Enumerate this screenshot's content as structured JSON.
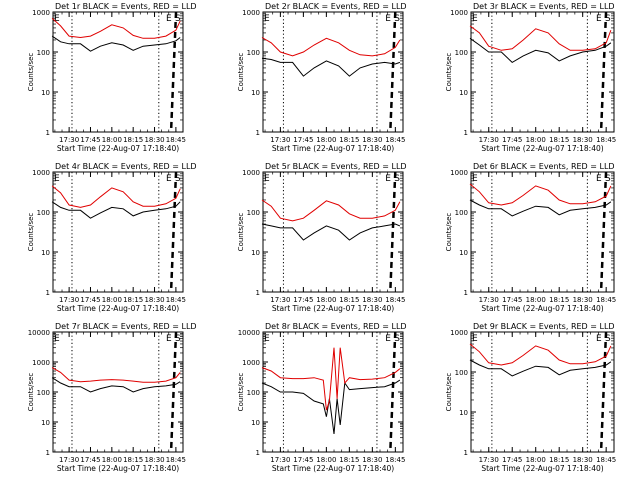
{
  "figure": {
    "xlabel": "Start Time (22-Aug-07 17:18:40)",
    "ylabel": "Counts/sec",
    "xticks": [
      "17:30",
      "17:45",
      "18:00",
      "18:15",
      "18:30",
      "18:45"
    ],
    "yticks": [
      "1",
      "10",
      "100",
      "1000"
    ],
    "yticks_wide": [
      "1",
      "10",
      "100",
      "1000",
      "10000"
    ],
    "marker_E": "E",
    "marker_S": "S",
    "colors": {
      "events": "#000000",
      "lld": "#e00000",
      "axes": "#000000"
    }
  },
  "chart_data": [
    {
      "type": "line",
      "title": "Det 1r BLACK = Events, RED = LLD",
      "ylim": [
        1,
        1000
      ],
      "log": true,
      "series": [
        {
          "name": "Events",
          "x": [
            "17:18",
            "17:24",
            "17:30",
            "17:38",
            "17:45",
            "17:52",
            "18:00",
            "18:08",
            "18:15",
            "18:22",
            "18:30",
            "18:38",
            "18:45",
            "18:48"
          ],
          "y": [
            250,
            180,
            160,
            160,
            105,
            140,
            170,
            150,
            110,
            140,
            150,
            160,
            190,
            230
          ]
        },
        {
          "name": "LLD",
          "x": [
            "17:18",
            "17:24",
            "17:30",
            "17:38",
            "17:45",
            "17:52",
            "18:00",
            "18:08",
            "18:15",
            "18:22",
            "18:30",
            "18:38",
            "18:45",
            "18:48"
          ],
          "y": [
            700,
            450,
            250,
            230,
            250,
            330,
            480,
            400,
            260,
            220,
            220,
            250,
            350,
            600
          ]
        }
      ]
    },
    {
      "type": "line",
      "title": "Det 2r BLACK = Events, RED = LLD",
      "ylim": [
        1,
        1000
      ],
      "log": true,
      "series": [
        {
          "name": "Events",
          "x": [
            "17:18",
            "17:24",
            "17:30",
            "17:38",
            "17:45",
            "17:52",
            "18:00",
            "18:08",
            "18:15",
            "18:22",
            "18:30",
            "18:38",
            "18:45",
            "18:48"
          ],
          "y": [
            70,
            65,
            55,
            55,
            25,
            40,
            60,
            45,
            25,
            40,
            50,
            55,
            50,
            55
          ]
        },
        {
          "name": "LLD",
          "x": [
            "17:18",
            "17:24",
            "17:30",
            "17:38",
            "17:45",
            "17:52",
            "18:00",
            "18:08",
            "18:15",
            "18:22",
            "18:30",
            "18:38",
            "18:45",
            "18:48"
          ],
          "y": [
            230,
            170,
            100,
            80,
            100,
            150,
            220,
            170,
            110,
            85,
            80,
            90,
            130,
            200
          ]
        }
      ]
    },
    {
      "type": "line",
      "title": "Det 3r BLACK = Events, RED = LLD",
      "ylim": [
        1,
        1000
      ],
      "log": true,
      "series": [
        {
          "name": "Events",
          "x": [
            "17:18",
            "17:24",
            "17:30",
            "17:38",
            "17:45",
            "17:52",
            "18:00",
            "18:08",
            "18:15",
            "18:22",
            "18:30",
            "18:38",
            "18:45",
            "18:48"
          ],
          "y": [
            220,
            150,
            100,
            100,
            55,
            80,
            110,
            95,
            60,
            80,
            100,
            110,
            140,
            170
          ]
        },
        {
          "name": "LLD",
          "x": [
            "17:18",
            "17:24",
            "17:30",
            "17:38",
            "17:45",
            "17:52",
            "18:00",
            "18:08",
            "18:15",
            "18:22",
            "18:30",
            "18:38",
            "18:45",
            "18:48"
          ],
          "y": [
            450,
            300,
            140,
            110,
            120,
            200,
            380,
            300,
            160,
            110,
            110,
            120,
            170,
            350
          ]
        }
      ]
    },
    {
      "type": "line",
      "title": "Det 4r BLACK = Events, RED = LLD",
      "ylim": [
        1,
        1000
      ],
      "log": true,
      "series": [
        {
          "name": "Events",
          "x": [
            "17:18",
            "17:24",
            "17:30",
            "17:38",
            "17:45",
            "17:52",
            "18:00",
            "18:08",
            "18:15",
            "18:22",
            "18:30",
            "18:38",
            "18:45",
            "18:48"
          ],
          "y": [
            180,
            130,
            110,
            110,
            70,
            95,
            130,
            120,
            80,
            100,
            110,
            120,
            140,
            180
          ]
        },
        {
          "name": "LLD",
          "x": [
            "17:18",
            "17:24",
            "17:30",
            "17:38",
            "17:45",
            "17:52",
            "18:00",
            "18:08",
            "18:15",
            "18:22",
            "18:30",
            "18:38",
            "18:45",
            "18:48"
          ],
          "y": [
            450,
            300,
            150,
            130,
            150,
            240,
            400,
            320,
            180,
            140,
            140,
            160,
            220,
            380
          ]
        }
      ]
    },
    {
      "type": "line",
      "title": "Det 5r BLACK = Events, RED = LLD",
      "ylim": [
        1,
        1000
      ],
      "log": true,
      "series": [
        {
          "name": "Events",
          "x": [
            "17:18",
            "17:24",
            "17:30",
            "17:38",
            "17:45",
            "17:52",
            "18:00",
            "18:08",
            "18:15",
            "18:22",
            "18:30",
            "18:38",
            "18:45",
            "18:48"
          ],
          "y": [
            50,
            45,
            40,
            40,
            20,
            30,
            45,
            35,
            20,
            30,
            40,
            45,
            50,
            45
          ]
        },
        {
          "name": "LLD",
          "x": [
            "17:18",
            "17:24",
            "17:30",
            "17:38",
            "17:45",
            "17:52",
            "18:00",
            "18:08",
            "18:15",
            "18:22",
            "18:30",
            "18:38",
            "18:45",
            "18:48"
          ],
          "y": [
            200,
            140,
            70,
            60,
            70,
            110,
            190,
            150,
            90,
            70,
            70,
            80,
            110,
            180
          ]
        }
      ]
    },
    {
      "type": "line",
      "title": "Det 6r BLACK = Events, RED = LLD",
      "ylim": [
        1,
        1000
      ],
      "log": true,
      "series": [
        {
          "name": "Events",
          "x": [
            "17:18",
            "17:24",
            "17:30",
            "17:38",
            "17:45",
            "17:52",
            "18:00",
            "18:08",
            "18:15",
            "18:22",
            "18:30",
            "18:38",
            "18:45",
            "18:48"
          ],
          "y": [
            200,
            150,
            120,
            120,
            80,
            105,
            140,
            130,
            85,
            110,
            120,
            130,
            150,
            180
          ]
        },
        {
          "name": "LLD",
          "x": [
            "17:18",
            "17:24",
            "17:30",
            "17:38",
            "17:45",
            "17:52",
            "18:00",
            "18:08",
            "18:15",
            "18:22",
            "18:30",
            "18:38",
            "18:45",
            "18:48"
          ],
          "y": [
            500,
            320,
            170,
            150,
            170,
            260,
            450,
            350,
            200,
            160,
            160,
            180,
            250,
            450
          ]
        }
      ]
    },
    {
      "type": "line",
      "title": "Det 7r BLACK = Events, RED = LLD",
      "ylim": [
        1,
        10000
      ],
      "log": true,
      "series": [
        {
          "name": "Events",
          "x": [
            "17:18",
            "17:24",
            "17:30",
            "17:38",
            "17:45",
            "17:52",
            "18:00",
            "18:08",
            "18:15",
            "18:22",
            "18:30",
            "18:38",
            "18:45",
            "18:48"
          ],
          "y": [
            300,
            200,
            150,
            150,
            100,
            130,
            160,
            150,
            100,
            130,
            150,
            160,
            180,
            220
          ]
        },
        {
          "name": "LLD",
          "x": [
            "17:18",
            "17:24",
            "17:30",
            "17:38",
            "17:45",
            "17:52",
            "18:00",
            "18:08",
            "18:15",
            "18:22",
            "18:30",
            "18:38",
            "18:45",
            "18:48"
          ],
          "y": [
            650,
            450,
            250,
            220,
            230,
            250,
            260,
            250,
            230,
            210,
            210,
            230,
            300,
            450
          ]
        }
      ]
    },
    {
      "type": "line",
      "title": "Det 8r BLACK = Events, RED = LLD",
      "ylim": [
        1,
        10000
      ],
      "log": true,
      "series": [
        {
          "name": "Events",
          "x": [
            "17:18",
            "17:24",
            "17:30",
            "17:38",
            "17:45",
            "17:52",
            "17:58",
            "18:00",
            "18:02",
            "18:05",
            "18:07",
            "18:09",
            "18:12",
            "18:15",
            "18:22",
            "18:30",
            "18:38",
            "18:45",
            "18:48"
          ],
          "y": [
            200,
            150,
            100,
            100,
            90,
            50,
            40,
            15,
            60,
            4,
            60,
            8,
            200,
            120,
            130,
            140,
            150,
            200,
            250
          ]
        },
        {
          "name": "LLD",
          "x": [
            "17:18",
            "17:24",
            "17:30",
            "17:38",
            "17:45",
            "17:52",
            "17:58",
            "18:00",
            "18:02",
            "18:05",
            "18:07",
            "18:09",
            "18:12",
            "18:15",
            "18:22",
            "18:30",
            "18:38",
            "18:45",
            "18:48"
          ],
          "y": [
            650,
            500,
            300,
            280,
            280,
            300,
            250,
            25,
            50,
            3000,
            60,
            3000,
            200,
            300,
            260,
            270,
            300,
            450,
            600
          ]
        }
      ]
    },
    {
      "type": "line",
      "title": "Det 9r BLACK = Events, RED = LLD",
      "ylim": [
        1,
        1000
      ],
      "log": true,
      "series": [
        {
          "name": "Events",
          "x": [
            "17:18",
            "17:24",
            "17:30",
            "17:38",
            "17:45",
            "17:52",
            "18:00",
            "18:08",
            "18:15",
            "18:22",
            "18:30",
            "18:38",
            "18:45",
            "18:48"
          ],
          "y": [
            200,
            150,
            120,
            120,
            80,
            105,
            140,
            130,
            85,
            110,
            120,
            130,
            150,
            180
          ]
        },
        {
          "name": "LLD",
          "x": [
            "17:18",
            "17:24",
            "17:30",
            "17:38",
            "17:45",
            "17:52",
            "18:00",
            "18:08",
            "18:15",
            "18:22",
            "18:30",
            "18:38",
            "18:45",
            "18:48"
          ],
          "y": [
            500,
            320,
            170,
            150,
            170,
            260,
            450,
            350,
            200,
            160,
            160,
            180,
            250,
            450
          ]
        }
      ]
    }
  ]
}
